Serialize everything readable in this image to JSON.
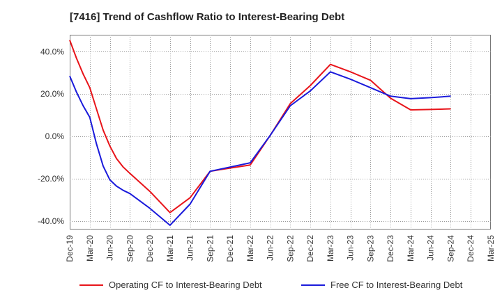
{
  "chart_data": {
    "type": "line",
    "title": "[7416]  Trend of Cashflow Ratio to Interest-Bearing Debt",
    "xlabel": "",
    "ylabel": "",
    "ylim": [
      -44,
      48
    ],
    "grid": true,
    "legend_position": "bottom",
    "y_ticks": [
      {
        "value": 40,
        "label": "40.0%"
      },
      {
        "value": 20,
        "label": "20.0%"
      },
      {
        "value": 0,
        "label": "0.0%"
      },
      {
        "value": -20,
        "label": "-20.0%"
      },
      {
        "value": -40,
        "label": "-40.0%"
      }
    ],
    "x_ticks": [
      "Dec-19",
      "Mar-20",
      "Jun-20",
      "Sep-20",
      "Dec-20",
      "Mar-21",
      "Jun-21",
      "Sep-21",
      "Dec-21",
      "Mar-22",
      "Jun-22",
      "Sep-22",
      "Dec-22",
      "Mar-23",
      "Jun-23",
      "Sep-23",
      "Dec-23",
      "Mar-24",
      "Jun-24",
      "Sep-24",
      "Dec-24",
      "Mar-25"
    ],
    "series": [
      {
        "name": "Operating CF to Interest-Bearing Debt",
        "color": "#e8141a",
        "points": [
          [
            "Dec-19",
            45.5
          ],
          [
            "Jan-20",
            37.0
          ],
          [
            "Feb-20",
            29.5
          ],
          [
            "Mar-20",
            23.0
          ],
          [
            "Apr-20",
            13.0
          ],
          [
            "May-20",
            3.0
          ],
          [
            "Jun-20",
            -4.5
          ],
          [
            "Jul-20",
            -10.5
          ],
          [
            "Aug-20",
            -14.5
          ],
          [
            "Sep-20",
            -17.5
          ],
          [
            "Dec-20",
            -26.0
          ],
          [
            "Mar-21",
            -36.0
          ],
          [
            "Jun-21",
            -29.0
          ],
          [
            "Sep-21",
            -16.5
          ],
          [
            "Dec-21",
            -15.0
          ],
          [
            "Mar-22",
            -13.5
          ],
          [
            "Jun-22",
            0.5
          ],
          [
            "Sep-22",
            15.5
          ],
          [
            "Dec-22",
            24.0
          ],
          [
            "Mar-23",
            34.0
          ],
          [
            "Jun-23",
            30.5
          ],
          [
            "Sep-23",
            26.5
          ],
          [
            "Dec-23",
            18.0
          ],
          [
            "Mar-24",
            12.5
          ],
          [
            "Jun-24",
            12.7
          ],
          [
            "Sep-24",
            13.0
          ]
        ]
      },
      {
        "name": "Free CF to Interest-Bearing Debt",
        "color": "#1a1adb",
        "points": [
          [
            "Dec-19",
            28.5
          ],
          [
            "Jan-20",
            21.0
          ],
          [
            "Feb-20",
            14.5
          ],
          [
            "Mar-20",
            9.0
          ],
          [
            "Apr-20",
            -3.5
          ],
          [
            "May-20",
            -14.0
          ],
          [
            "Jun-20",
            -20.5
          ],
          [
            "Jul-20",
            -23.5
          ],
          [
            "Aug-20",
            -25.5
          ],
          [
            "Sep-20",
            -27.0
          ],
          [
            "Dec-20",
            -34.0
          ],
          [
            "Mar-21",
            -42.0
          ],
          [
            "Jun-21",
            -32.0
          ],
          [
            "Sep-21",
            -16.5
          ],
          [
            "Dec-21",
            -14.5
          ],
          [
            "Mar-22",
            -12.5
          ],
          [
            "Jun-22",
            0.5
          ],
          [
            "Sep-22",
            14.5
          ],
          [
            "Dec-22",
            21.5
          ],
          [
            "Mar-23",
            30.5
          ],
          [
            "Jun-23",
            27.0
          ],
          [
            "Sep-23",
            23.0
          ],
          [
            "Dec-23",
            19.0
          ],
          [
            "Mar-24",
            17.8
          ],
          [
            "Jun-24",
            18.3
          ],
          [
            "Sep-24",
            19.0
          ]
        ]
      }
    ]
  }
}
